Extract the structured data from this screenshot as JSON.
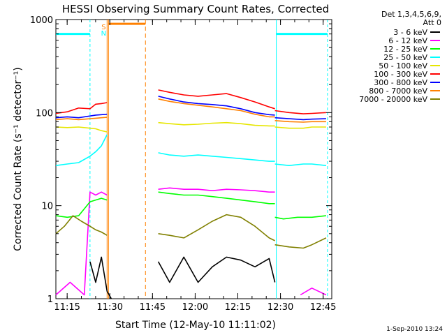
{
  "chart_data": {
    "type": "line",
    "title": "HESSI Observing Summary Count Rates, Corrected",
    "xlabel": "Start Time (12-May-10 11:11:02)",
    "ylabel": "Corrected Count Rate (s⁻¹ detector⁻¹)",
    "y_scale": "log",
    "ylim": [
      1,
      1000
    ],
    "xlim_minutes_after_11_11_02": [
      0,
      97
    ],
    "x_ticks": [
      {
        "label": "11:15",
        "minute": 3.97
      },
      {
        "label": "11:30",
        "minute": 18.97
      },
      {
        "label": "11:45",
        "minute": 33.97
      },
      {
        "label": "12:00",
        "minute": 48.97
      },
      {
        "label": "12:15",
        "minute": 63.97
      },
      {
        "label": "12:30",
        "minute": 78.97
      },
      {
        "label": "12:45",
        "minute": 93.97
      }
    ],
    "y_ticks": [
      {
        "label": "1",
        "value": 1
      },
      {
        "label": "10",
        "value": 10
      },
      {
        "label": "100",
        "value": 100
      },
      {
        "label": "1000",
        "value": 1000
      }
    ],
    "legend_header": [
      "Det 1,3,4,5,6,9,",
      "Att 0"
    ],
    "legend_position": "right",
    "timestamp": "1-Sep-2010 13:24",
    "markers": {
      "saa_label": "S",
      "night_label": "N"
    },
    "colors": {
      "night_cyan": "#00ffff",
      "saa_orange": "#ff8000",
      "axes": "#000000"
    },
    "series": [
      {
        "name": "3 - 6 keV",
        "color": "#000000",
        "segments": [
          {
            "x": [
              12,
              14,
              16,
              18,
              19.5
            ],
            "y": [
              2.5,
              1.5,
              2.8,
              1.2,
              1
            ]
          },
          {
            "x": [
              36,
              40,
              45,
              50,
              55,
              60,
              65,
              70,
              75,
              77
            ],
            "y": [
              2.5,
              1.5,
              2.8,
              1.5,
              2.2,
              2.8,
              2.6,
              2.2,
              2.7,
              1.5
            ]
          }
        ]
      },
      {
        "name": "6 - 12 keV",
        "color": "#ff00ff",
        "segments": [
          {
            "x": [
              0,
              5,
              10,
              12,
              14,
              16,
              18
            ],
            "y": [
              1.1,
              1.5,
              1.1,
              14,
              13,
              14,
              13
            ]
          },
          {
            "x": [
              36,
              40,
              45,
              50,
              55,
              60,
              65,
              70,
              75,
              77
            ],
            "y": [
              15,
              15.5,
              15,
              15,
              14.5,
              15,
              14.8,
              14.5,
              14,
              14
            ]
          },
          {
            "x": [
              86,
              90,
              95
            ],
            "y": [
              1.1,
              1.3,
              1.1
            ]
          }
        ]
      },
      {
        "name": "12 - 25 keV",
        "color": "#00ff00",
        "segments": [
          {
            "x": [
              0,
              4,
              8,
              12,
              14,
              16,
              18
            ],
            "y": [
              7.8,
              7.5,
              7.8,
              11,
              11.5,
              12,
              11.5
            ]
          },
          {
            "x": [
              36,
              40,
              45,
              50,
              55,
              60,
              65,
              70,
              75,
              77
            ],
            "y": [
              14,
              13.5,
              13,
              13,
              12.5,
              12,
              11.5,
              11,
              10.5,
              10.5
            ]
          },
          {
            "x": [
              77,
              80,
              85,
              90,
              95
            ],
            "y": [
              7.5,
              7.2,
              7.5,
              7.5,
              7.8
            ]
          }
        ]
      },
      {
        "name": "25 - 50 keV",
        "color": "#00ffff",
        "segments": [
          {
            "x": [
              0,
              4,
              8,
              12,
              14,
              16,
              18
            ],
            "y": [
              27,
              28,
              29,
              34,
              38,
              44,
              58
            ]
          },
          {
            "x": [
              36,
              40,
              45,
              50,
              55,
              60,
              65,
              70,
              75,
              77
            ],
            "y": [
              37,
              35,
              34,
              35,
              34,
              33,
              32,
              31,
              30,
              30
            ]
          },
          {
            "x": [
              77,
              82,
              87,
              90,
              95
            ],
            "y": [
              28,
              27,
              28,
              28,
              27
            ]
          }
        ]
      },
      {
        "name": "50 - 100 keV",
        "color": "#e6e600",
        "segments": [
          {
            "x": [
              0,
              4,
              8,
              12,
              14,
              16,
              18
            ],
            "y": [
              70,
              69,
              70,
              68,
              67,
              64,
              62
            ]
          },
          {
            "x": [
              36,
              40,
              45,
              50,
              55,
              60,
              65,
              70,
              75,
              77
            ],
            "y": [
              78,
              76,
              74,
              75,
              77,
              78,
              76,
              73,
              72,
              72
            ]
          },
          {
            "x": [
              77,
              82,
              87,
              90,
              95
            ],
            "y": [
              70,
              68,
              68,
              70,
              70
            ]
          }
        ]
      },
      {
        "name": "100 - 300 keV",
        "color": "#ff0000",
        "segments": [
          {
            "x": [
              0,
              4,
              8,
              12,
              14,
              16,
              18
            ],
            "y": [
              98,
              102,
              112,
              110,
              123,
              125,
              128
            ]
          },
          {
            "x": [
              36,
              40,
              45,
              50,
              55,
              60,
              65,
              70,
              75,
              77
            ],
            "y": [
              175,
              165,
              155,
              150,
              155,
              160,
              145,
              130,
              115,
              110
            ]
          },
          {
            "x": [
              77,
              82,
              87,
              90,
              95
            ],
            "y": [
              105,
              100,
              97,
              98,
              100
            ]
          }
        ]
      },
      {
        "name": "300 - 800 keV",
        "color": "#0000ff",
        "segments": [
          {
            "x": [
              0,
              4,
              8,
              12,
              14,
              16,
              18
            ],
            "y": [
              88,
              90,
              88,
              92,
              94,
              95,
              96
            ]
          },
          {
            "x": [
              36,
              40,
              45,
              50,
              55,
              60,
              65,
              70,
              75,
              77
            ],
            "y": [
              150,
              140,
              130,
              125,
              122,
              118,
              110,
              100,
              95,
              94
            ]
          },
          {
            "x": [
              77,
              82,
              87,
              90,
              95
            ],
            "y": [
              88,
              86,
              84,
              85,
              86
            ]
          }
        ]
      },
      {
        "name": "800 - 7000 keV",
        "color": "#ff8000",
        "segments": [
          {
            "x": [
              0,
              4,
              8,
              12,
              14,
              16,
              18
            ],
            "y": [
              84,
              86,
              84,
              86,
              87,
              88,
              89
            ]
          },
          {
            "x": [
              36,
              40,
              45,
              50,
              55,
              60,
              65,
              70,
              75,
              77
            ],
            "y": [
              140,
              132,
              125,
              120,
              115,
              110,
              105,
              96,
              90,
              90
            ]
          },
          {
            "x": [
              77,
              82,
              87,
              90,
              95
            ],
            "y": [
              82,
              80,
              79,
              80,
              80
            ]
          }
        ]
      },
      {
        "name": "7000 - 20000 keV",
        "color": "#808000",
        "segments": [
          {
            "x": [
              0,
              3,
              6,
              9,
              12,
              14,
              16,
              18
            ],
            "y": [
              5,
              6,
              7.8,
              6.8,
              6,
              5.5,
              5.2,
              4.8
            ]
          },
          {
            "x": [
              36,
              40,
              45,
              50,
              55,
              60,
              65,
              70,
              75,
              77
            ],
            "y": [
              5,
              4.8,
              4.5,
              5.5,
              6.8,
              8,
              7.5,
              6,
              4.5,
              4.2
            ]
          },
          {
            "x": [
              77,
              82,
              87,
              90,
              95
            ],
            "y": [
              3.8,
              3.6,
              3.5,
              3.8,
              4.5
            ]
          }
        ]
      }
    ]
  }
}
